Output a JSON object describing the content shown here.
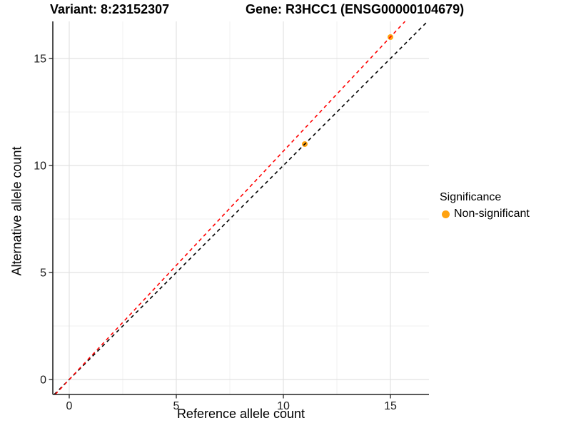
{
  "titles": {
    "variant": "Variant: 8:23152307",
    "gene": "Gene: R3HCC1 (ENSG00000104679)"
  },
  "chart_data": {
    "type": "scatter",
    "xlabel": "Reference allele count",
    "ylabel": "Alternative allele count",
    "xlim": [
      -0.77,
      16.8
    ],
    "ylim": [
      -0.7,
      16.73
    ],
    "x_ticks": [
      0,
      5,
      10,
      15
    ],
    "y_ticks": [
      0,
      5,
      10,
      15
    ],
    "x_minor_ticks": [
      2.5,
      7.5,
      12.5
    ],
    "y_minor_ticks": [
      2.5,
      7.5,
      12.5
    ],
    "grid": "major and minor, light gray on white",
    "points": [
      {
        "x": 11,
        "y": 11,
        "significance": "Non-significant"
      },
      {
        "x": 15,
        "y": 16,
        "significance": "Non-significant"
      }
    ],
    "lines": [
      {
        "name": "identity-line",
        "style": "dashed",
        "color": "#000000",
        "slope": 1.0,
        "intercept": 0
      },
      {
        "name": "fit-line",
        "style": "dashed",
        "color": "#FF0000",
        "slope": 1.067,
        "intercept": 0
      }
    ],
    "legend": {
      "title": "Significance",
      "position": "right",
      "entries": [
        {
          "label": "Non-significant",
          "color": "#FFA210"
        }
      ]
    }
  },
  "colors": {
    "background": "#FFFFFF",
    "axis": "#222222",
    "tick_text": "#1A1A1A",
    "grid_major": "#E2E2E2",
    "grid_minor": "#F0F0F0",
    "point": "#FFA210",
    "identity_line": "#000000",
    "fit_line": "#FF0000"
  }
}
